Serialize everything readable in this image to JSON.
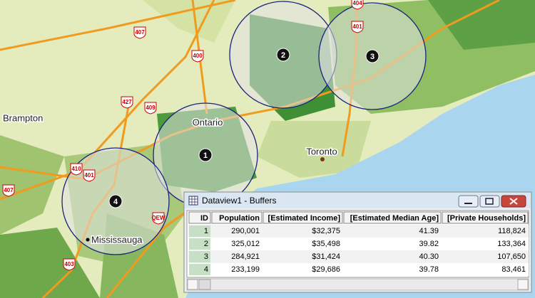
{
  "map": {
    "places": [
      "Brampton",
      "Ontario",
      "Toronto",
      "Mississauga"
    ],
    "highways": [
      "407",
      "400",
      "427",
      "409",
      "410",
      "401",
      "407",
      "QEW",
      "403",
      "404",
      "401"
    ],
    "buffers": [
      "1",
      "2",
      "3",
      "4"
    ]
  },
  "window": {
    "title": "Dataview1 - Buffers",
    "table": {
      "columns": [
        "ID",
        "Population",
        "[Estimated Income]",
        "[Estimated Median Age]",
        "[Private Households]"
      ],
      "rows": [
        [
          "1",
          "290,001",
          "$32,375",
          "41.39",
          "118,824"
        ],
        [
          "2",
          "325,012",
          "$35,498",
          "39.82",
          "133,364"
        ],
        [
          "3",
          "284,921",
          "$31,424",
          "40.30",
          "107,650"
        ],
        [
          "4",
          "233,199",
          "$29,686",
          "39.78",
          "83,461"
        ]
      ]
    }
  }
}
